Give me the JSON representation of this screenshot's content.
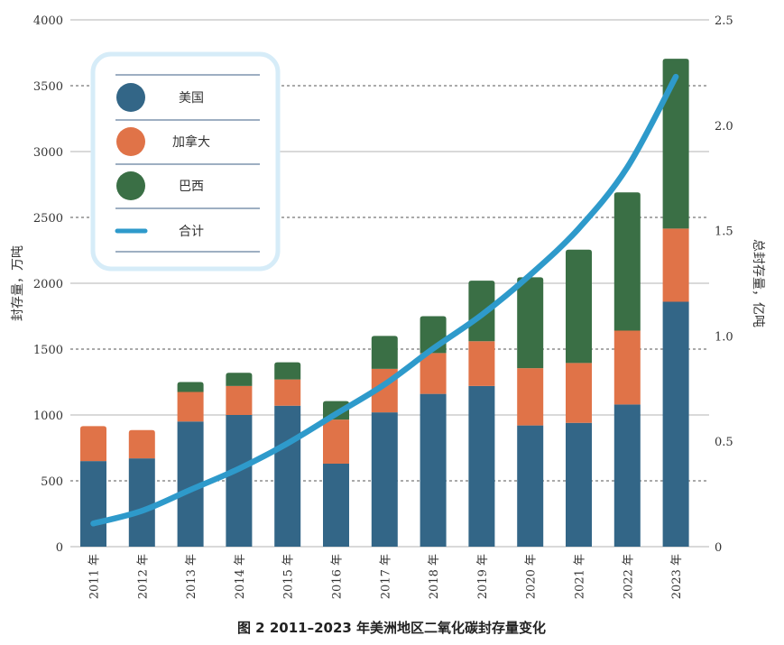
{
  "chart_data": {
    "type": "bar",
    "stacked": true,
    "title": "图 2  2011–2023 年美洲地区二氧化碳封存量变化",
    "categories": [
      "2011 年",
      "2012 年",
      "2013 年",
      "2014 年",
      "2015 年",
      "2016 年",
      "2017 年",
      "2018 年",
      "2019 年",
      "2020 年",
      "2021 年",
      "2022 年",
      "2023 年"
    ],
    "ylabel": "封存量，万吨",
    "y2label": "总封存量，亿吨",
    "ylim": [
      0,
      4000
    ],
    "y2lim": [
      0,
      2.5
    ],
    "yticks": [
      "0",
      "500",
      "1000",
      "1500",
      "2000",
      "2500",
      "3000",
      "3500",
      "4000"
    ],
    "y2ticks": [
      "0",
      "0.5",
      "1.0",
      "1.5",
      "2.0",
      "2.5"
    ],
    "series": [
      {
        "name": "美国",
        "color": "#336687",
        "values": [
          650,
          670,
          950,
          1000,
          1070,
          630,
          1020,
          1160,
          1220,
          920,
          940,
          1080,
          1860
        ]
      },
      {
        "name": "加拿大",
        "color": "#E07348",
        "values": [
          265,
          215,
          225,
          220,
          200,
          335,
          330,
          310,
          340,
          435,
          455,
          560,
          555
        ]
      },
      {
        "name": "巴西",
        "color": "#3A6F45",
        "values": [
          0,
          0,
          75,
          100,
          130,
          140,
          250,
          280,
          460,
          690,
          860,
          1050,
          1290
        ]
      }
    ],
    "line": {
      "name": "合计",
      "color": "#2E9ACB",
      "axis": "right",
      "values": [
        0.11,
        0.17,
        0.27,
        0.37,
        0.49,
        0.63,
        0.77,
        0.94,
        1.1,
        1.29,
        1.51,
        1.8,
        2.23
      ]
    },
    "legend_position": "top-left"
  }
}
